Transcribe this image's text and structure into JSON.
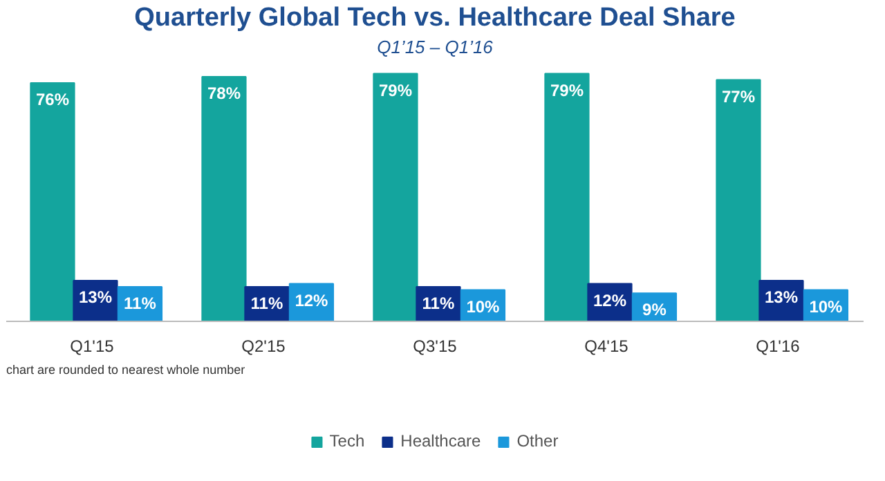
{
  "chart_data": {
    "type": "bar",
    "title": "Quarterly Global Tech vs. Healthcare Deal Share",
    "subtitle": "Q1’15 – Q1’16",
    "categories": [
      "Q1'15",
      "Q2'15",
      "Q3'15",
      "Q4'15",
      "Q1'16"
    ],
    "series": [
      {
        "name": "Tech",
        "color": "#14a59e",
        "values": [
          76,
          78,
          79,
          79,
          77
        ],
        "value_labels": [
          "76%",
          "78%",
          "79%",
          "79%",
          "77%"
        ]
      },
      {
        "name": "Healthcare",
        "color": "#0c2f8a",
        "values": [
          13,
          11,
          11,
          12,
          13
        ],
        "value_labels": [
          "13%",
          "11%",
          "11%",
          "12%",
          "13%"
        ]
      },
      {
        "name": "Other",
        "color": "#1b98db",
        "values": [
          11,
          12,
          10,
          9,
          10
        ],
        "value_labels": [
          "11%",
          "12%",
          "10%",
          "9%",
          "10%"
        ]
      }
    ],
    "legend": "bottom",
    "annotations": [
      "chart are rounded to nearest whole number"
    ]
  }
}
